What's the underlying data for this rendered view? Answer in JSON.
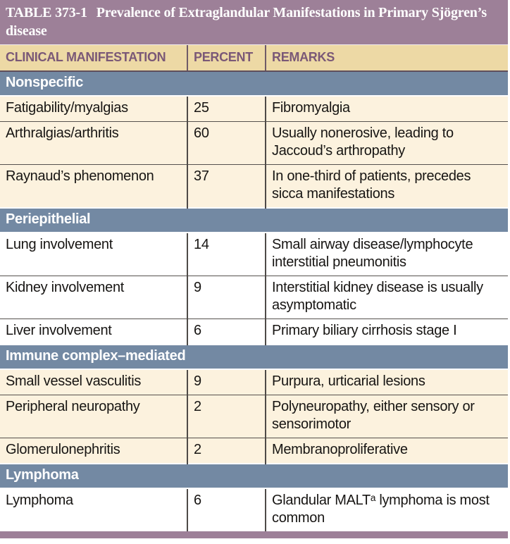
{
  "table": {
    "label": "TABLE 373-1",
    "title": "Prevalence of Extraglandular Manifestations in Primary Sjögren’s disease",
    "columns": {
      "manifestation": "CLINICAL MANIFESTATION",
      "percent": "PERCENT",
      "remarks": "REMARKS"
    },
    "sections": [
      {
        "name": "Nonspecific",
        "tone": "cream",
        "rows": [
          {
            "manifestation": "Fatigability/myalgias",
            "percent": "25",
            "remarks": "Fibromyalgia"
          },
          {
            "manifestation": "Arthralgias/arthritis",
            "percent": "60",
            "remarks": "Usually nonerosive, leading to Jaccoud’s arthropathy"
          },
          {
            "manifestation": "Raynaud’s phenomenon",
            "percent": "37",
            "remarks": "In one-third of patients, precedes sicca manifestations"
          }
        ]
      },
      {
        "name": "Periepithelial",
        "tone": "white",
        "rows": [
          {
            "manifestation": "Lung involvement",
            "percent": "14",
            "remarks": "Small airway disease/lymphocyte interstitial pneumonitis"
          },
          {
            "manifestation": "Kidney involvement",
            "percent": "9",
            "remarks": "Interstitial kidney disease is usually asymptomatic"
          },
          {
            "manifestation": "Liver involvement",
            "percent": "6",
            "remarks": "Primary biliary cirrhosis stage I"
          }
        ]
      },
      {
        "name": "Immune complex–mediated",
        "tone": "cream",
        "rows": [
          {
            "manifestation": "Small vessel vasculitis",
            "percent": "9",
            "remarks": "Purpura, urticarial lesions"
          },
          {
            "manifestation": "Peripheral neuropathy",
            "percent": "2",
            "remarks": "Polyneuropathy, either sensory or sensorimotor"
          },
          {
            "manifestation": "Glomerulonephritis",
            "percent": "2",
            "remarks": "Membranoproliferative"
          }
        ]
      },
      {
        "name": "Lymphoma",
        "tone": "white",
        "rows": [
          {
            "manifestation": "Lymphoma",
            "percent": "6",
            "remarks": "Glandular MALTᵃ lymphoma is most common"
          }
        ]
      }
    ],
    "colors": {
      "title_bar": "#9d8098",
      "header_bg": "#edd9a5",
      "header_text": "#7a5877",
      "section_band": "#7389a3",
      "row_cream": "#fcf2de",
      "row_white": "#ffffff",
      "bottom_bar": "#9d8098"
    }
  }
}
